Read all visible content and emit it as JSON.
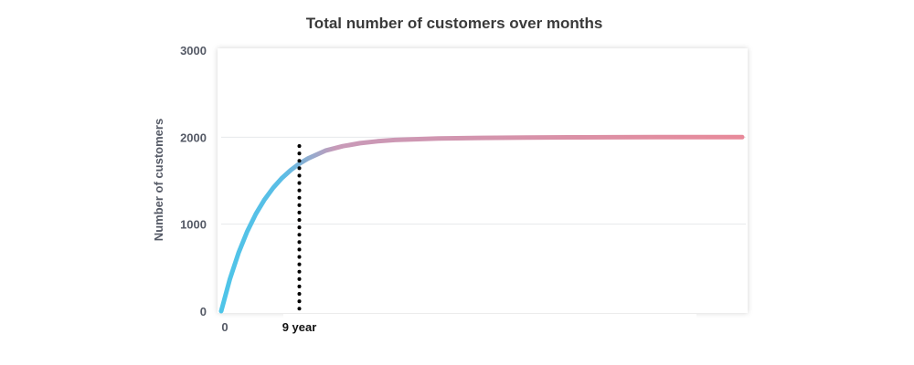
{
  "chart_data": {
    "type": "line",
    "title": "Total number of customers over months",
    "xlabel": "",
    "ylabel": "Number of customers",
    "ylim": [
      0,
      3000
    ],
    "xlim": [
      0,
      60
    ],
    "y_ticks": [
      "0",
      "1000",
      "2000",
      "3000"
    ],
    "x_ticks": [
      "0"
    ],
    "grid": true,
    "series": [
      {
        "x": [
          0,
          1,
          2,
          3,
          4,
          5,
          6,
          7,
          8,
          9,
          10,
          12,
          14,
          16,
          18,
          20,
          25,
          30,
          35,
          40,
          45,
          50,
          55,
          60
        ],
        "values": [
          0,
          368,
          670,
          917,
          1119,
          1284,
          1419,
          1530,
          1621,
          1695,
          1755,
          1845,
          1897,
          1931,
          1953,
          1968,
          1985,
          1992,
          1996,
          1998,
          1999,
          2000,
          2000,
          2000
        ],
        "gradient": [
          "#4ec5e8",
          "#e88a9a"
        ]
      }
    ],
    "annotations": [
      {
        "x": 9,
        "label": "9 year",
        "style": "dotted"
      }
    ]
  }
}
